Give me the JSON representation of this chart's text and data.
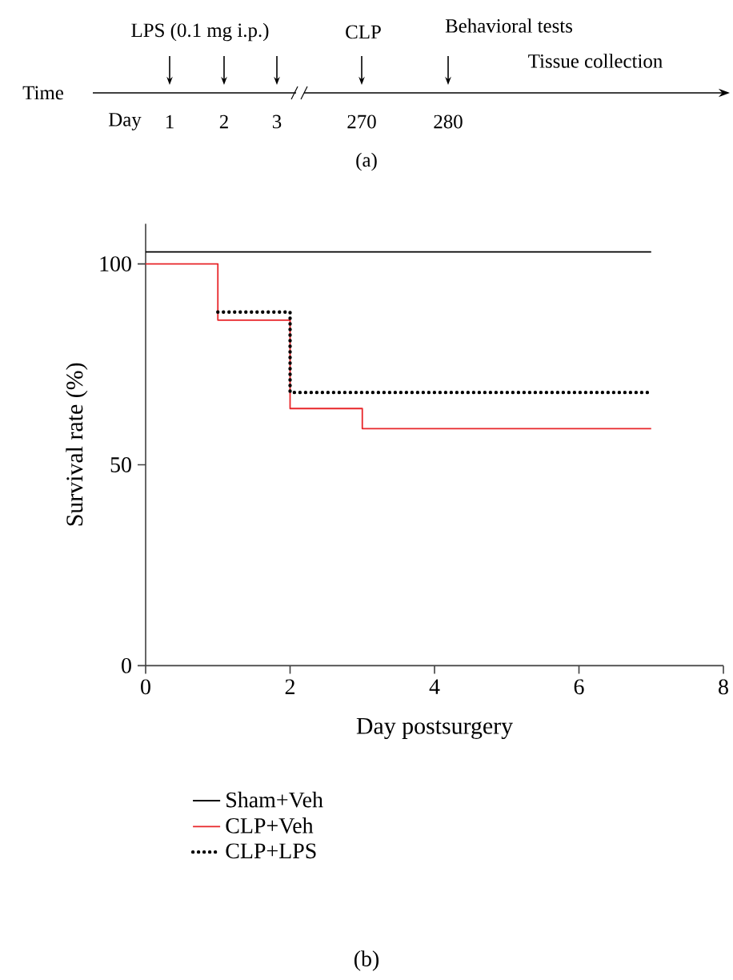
{
  "chart_data": [
    {
      "type": "other",
      "categories": [
        "1",
        "2",
        "3",
        "270",
        "280"
      ],
      "annotations": [
        "Time",
        "Day",
        "LPS (0.1 mg i.p.)",
        "CLP",
        "Behavioral tests",
        "Tissue collection",
        "(a)"
      ]
    },
    {
      "type": "step",
      "xlabel": "Day postsurgery",
      "ylabel": "Survival rate (%)",
      "xlim": [
        0,
        8
      ],
      "ylim": [
        0,
        110
      ],
      "xticks": [
        0,
        2,
        4,
        6,
        8
      ],
      "yticks": [
        0,
        50,
        100
      ],
      "legend": "bottom",
      "grid": false,
      "marker": "none",
      "series": [
        {
          "name": "Sham+Veh",
          "color": "#000000",
          "line_style": "solid",
          "x": [
            0,
            7
          ],
          "values": [
            103,
            103
          ]
        },
        {
          "name": "CLP+Veh",
          "color": "#e8262a",
          "line_style": "solid",
          "x": [
            0,
            1,
            2,
            3,
            7
          ],
          "values": [
            100,
            86,
            64,
            59,
            59
          ]
        },
        {
          "name": "CLP+LPS",
          "color": "#000000",
          "line_style": "dotted",
          "x": [
            1,
            2,
            7
          ],
          "values": [
            88,
            68,
            68
          ]
        }
      ],
      "annotations": [
        "(b)"
      ]
    }
  ]
}
